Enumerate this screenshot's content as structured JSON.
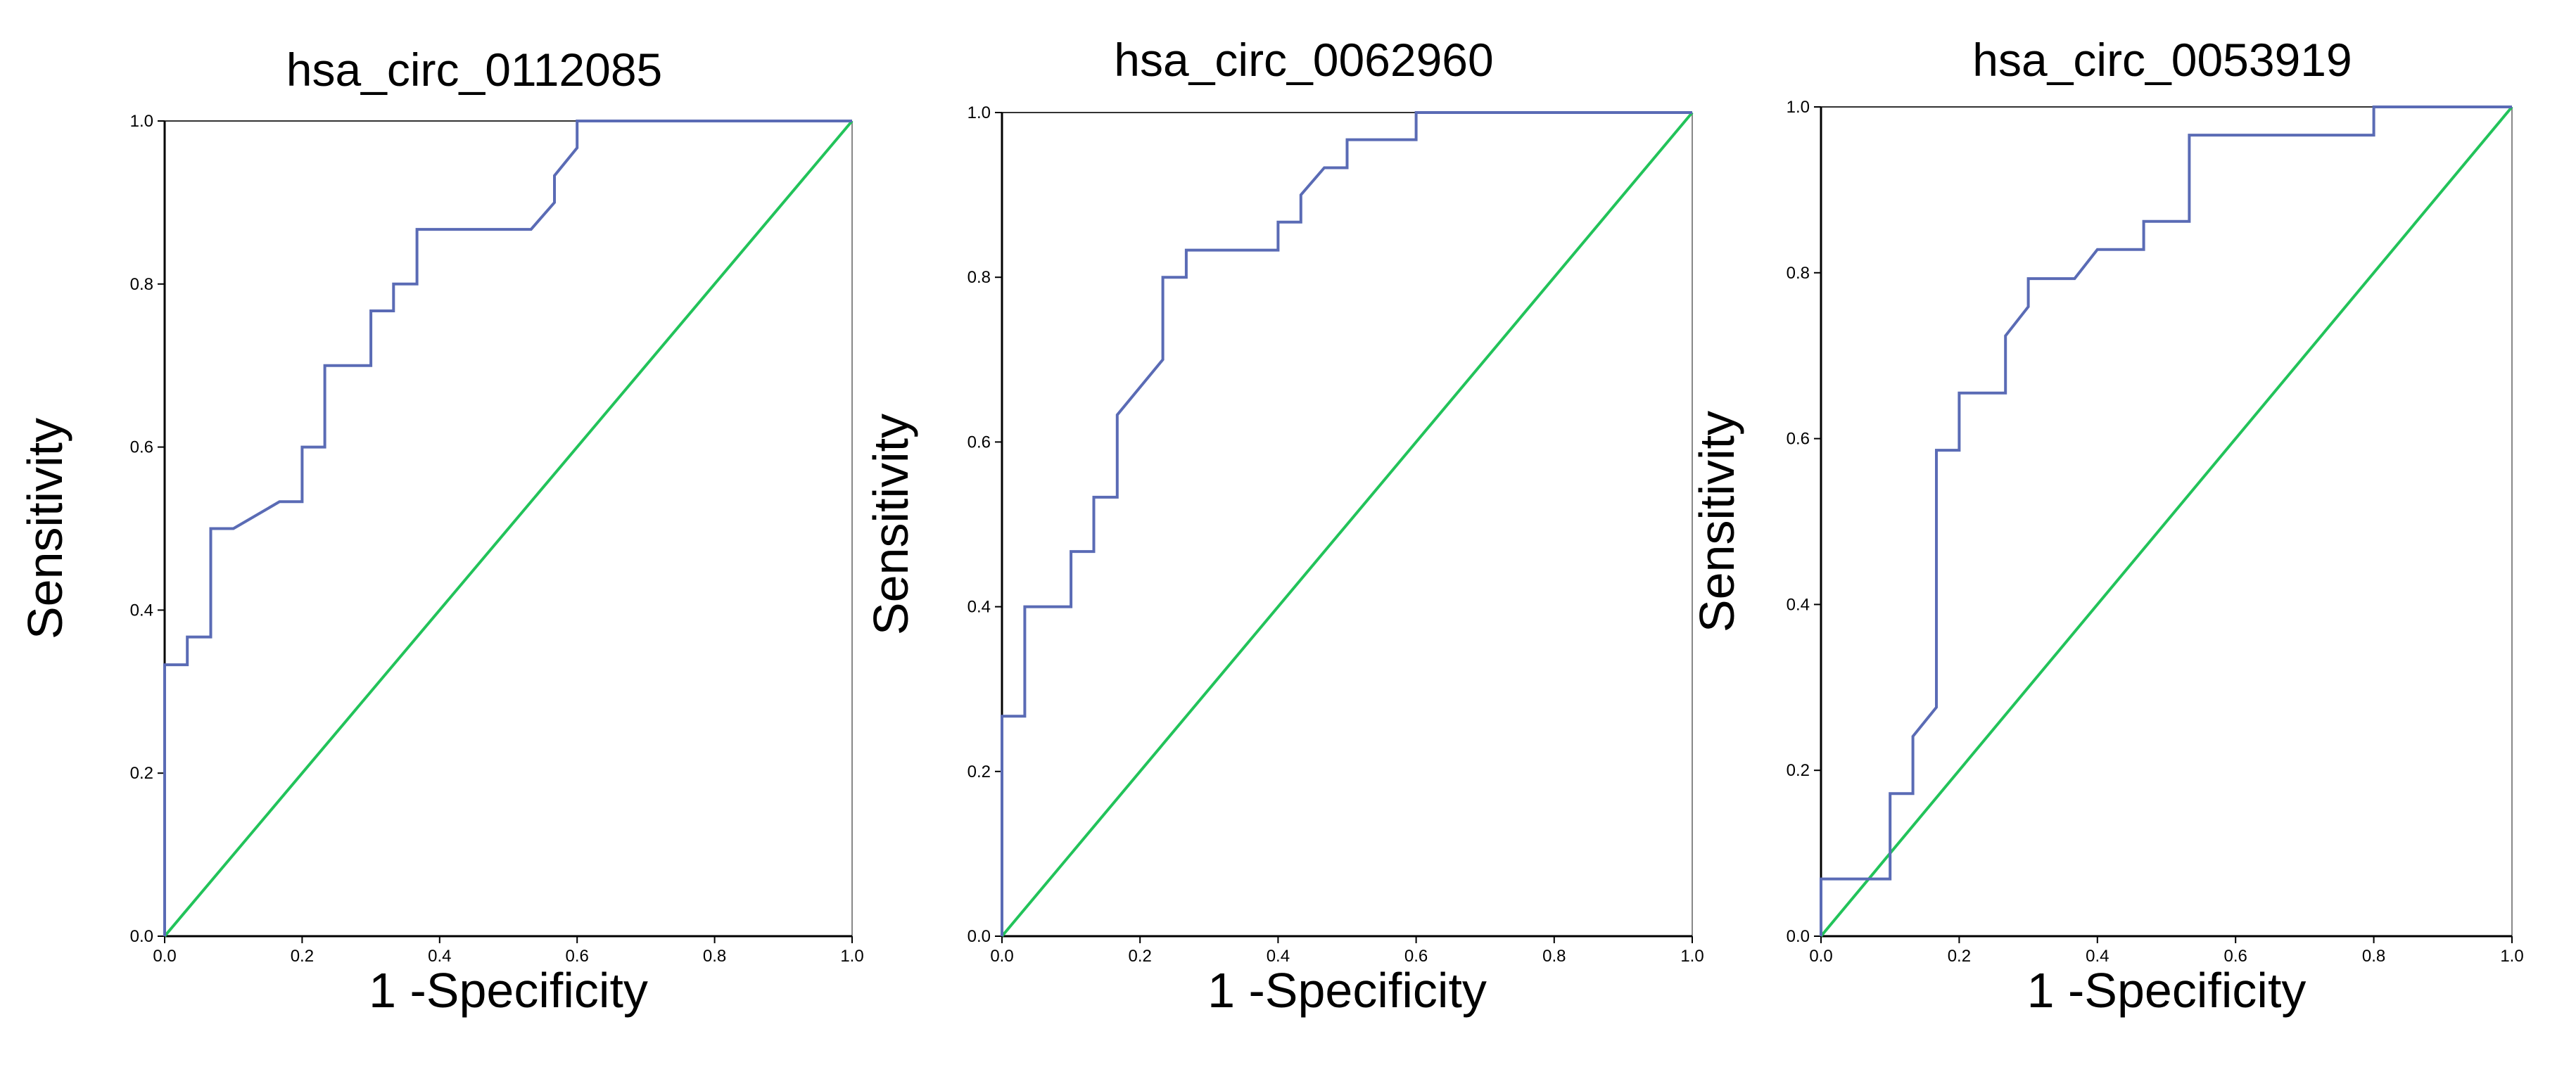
{
  "chart_data": [
    {
      "type": "line",
      "title": "hsa_circ_0112085",
      "xlabel": "1 -Specificity",
      "ylabel": "Sensitivity",
      "xlim": [
        0,
        1
      ],
      "ylim": [
        0,
        1
      ],
      "xticks": [
        "0.0",
        "0.2",
        "0.4",
        "0.6",
        "0.8",
        "1.0"
      ],
      "yticks": [
        "0.0",
        "0.2",
        "0.4",
        "0.6",
        "0.8",
        "1.0"
      ],
      "grid": false,
      "series": [
        {
          "name": "ROC curve",
          "color": "#5a6bb5",
          "x": [
            0,
            0,
            0.033,
            0.033,
            0.067,
            0.067,
            0.1,
            0.167,
            0.2,
            0.2,
            0.233,
            0.233,
            0.3,
            0.3,
            0.333,
            0.333,
            0.367,
            0.367,
            0.533,
            0.567,
            0.567,
            0.6,
            0.6,
            1.0
          ],
          "y": [
            0,
            0.333,
            0.333,
            0.367,
            0.367,
            0.5,
            0.5,
            0.533,
            0.533,
            0.6,
            0.6,
            0.7,
            0.7,
            0.767,
            0.767,
            0.8,
            0.8,
            0.867,
            0.867,
            0.9,
            0.933,
            0.967,
            1.0,
            1.0
          ]
        },
        {
          "name": "Reference line",
          "color": "#22c35a",
          "x": [
            0,
            1
          ],
          "y": [
            0,
            1
          ]
        }
      ]
    },
    {
      "type": "line",
      "title": "hsa_circ_0062960",
      "xlabel": "1 -Specificity",
      "ylabel": "Sensitivity",
      "xlim": [
        0,
        1
      ],
      "ylim": [
        0,
        1
      ],
      "xticks": [
        "0.0",
        "0.2",
        "0.4",
        "0.6",
        "0.8",
        "1.0"
      ],
      "yticks": [
        "0.0",
        "0.2",
        "0.4",
        "0.6",
        "0.8",
        "1.0"
      ],
      "grid": false,
      "series": [
        {
          "name": "ROC curve",
          "color": "#5a6bb5",
          "x": [
            0,
            0,
            0.033,
            0.033,
            0.1,
            0.1,
            0.133,
            0.133,
            0.167,
            0.167,
            0.233,
            0.233,
            0.267,
            0.267,
            0.4,
            0.4,
            0.433,
            0.433,
            0.467,
            0.467,
            0.5,
            0.5,
            0.6,
            0.6,
            1.0
          ],
          "y": [
            0,
            0.267,
            0.267,
            0.4,
            0.4,
            0.467,
            0.467,
            0.533,
            0.533,
            0.633,
            0.7,
            0.8,
            0.8,
            0.833,
            0.833,
            0.867,
            0.867,
            0.9,
            0.933,
            0.933,
            0.933,
            0.967,
            0.967,
            1.0,
            1.0
          ]
        },
        {
          "name": "Reference line",
          "color": "#22c35a",
          "x": [
            0,
            1
          ],
          "y": [
            0,
            1
          ]
        }
      ]
    },
    {
      "type": "line",
      "title": "hsa_circ_0053919",
      "xlabel": "1 -Specificity",
      "ylabel": "Sensitivity",
      "xlim": [
        0,
        1
      ],
      "ylim": [
        0,
        1
      ],
      "xticks": [
        "0.0",
        "0.2",
        "0.4",
        "0.6",
        "0.8",
        "1.0"
      ],
      "yticks": [
        "0.0",
        "0.2",
        "0.4",
        "0.6",
        "0.8",
        "1.0"
      ],
      "grid": false,
      "series": [
        {
          "name": "ROC curve",
          "color": "#5a6bb5",
          "x": [
            0,
            0,
            0.1,
            0.1,
            0.133,
            0.133,
            0.167,
            0.167,
            0.2,
            0.2,
            0.267,
            0.267,
            0.3,
            0.3,
            0.367,
            0.4,
            0.467,
            0.467,
            0.533,
            0.533,
            0.8,
            0.8,
            1.0
          ],
          "y": [
            0,
            0.069,
            0.069,
            0.172,
            0.172,
            0.241,
            0.276,
            0.586,
            0.586,
            0.655,
            0.655,
            0.724,
            0.759,
            0.793,
            0.793,
            0.828,
            0.828,
            0.862,
            0.862,
            0.966,
            0.966,
            1.0,
            1.0
          ]
        },
        {
          "name": "Reference line",
          "color": "#22c35a",
          "x": [
            0,
            1
          ],
          "y": [
            0,
            1
          ]
        }
      ]
    }
  ]
}
